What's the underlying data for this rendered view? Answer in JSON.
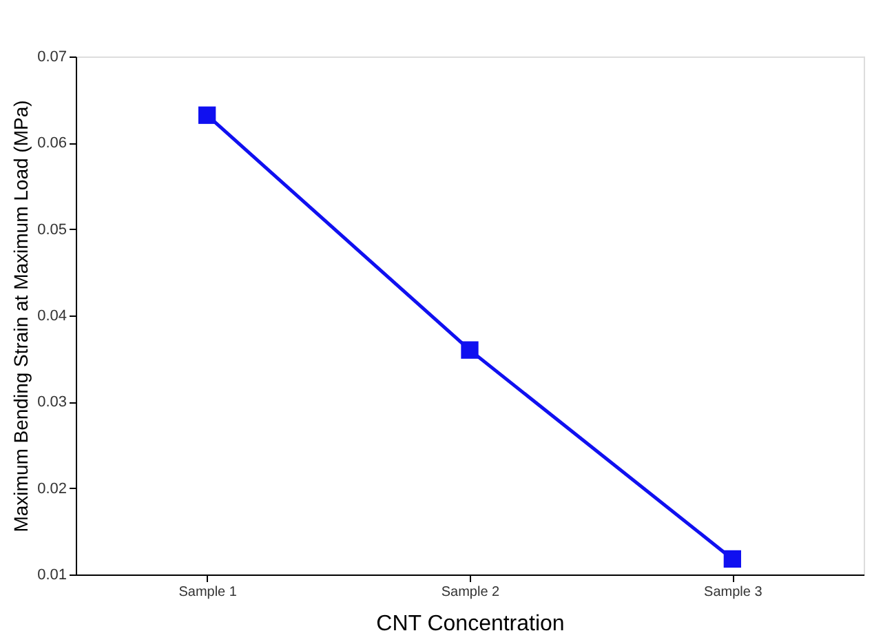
{
  "chart_data": {
    "type": "line",
    "xlabel": "CNT Concentration",
    "ylabel": "Maximum Bending Strain at Maximum Load (MPa)",
    "categories": [
      "Sample 1",
      "Sample 2",
      "Sample 3"
    ],
    "series": [
      {
        "color": "#1010f0",
        "values": [
          0.0632,
          0.036,
          0.0118
        ]
      }
    ],
    "ylim": [
      0.01,
      0.07
    ],
    "yticks": [
      0.01,
      0.02,
      0.03,
      0.04,
      0.05,
      0.06,
      0.07
    ],
    "grid": false,
    "marker": "square",
    "line_style": "solid"
  }
}
